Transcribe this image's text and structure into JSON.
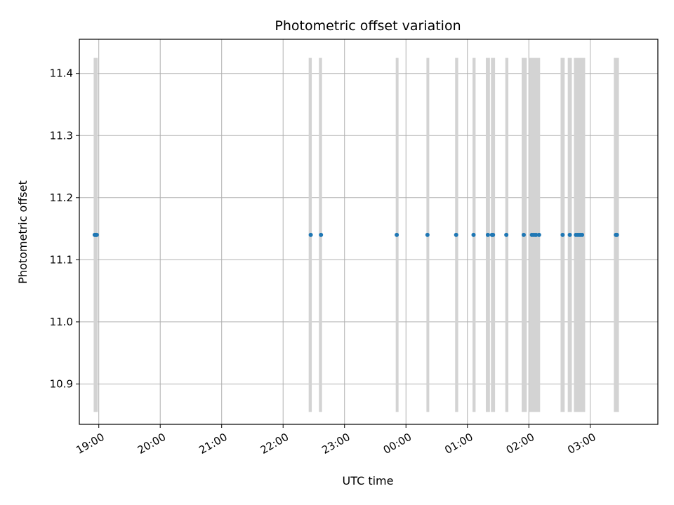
{
  "chart_data": {
    "type": "scatter",
    "title": "Photometric offset variation",
    "xlabel": "UTC time",
    "ylabel": "Photometric offset",
    "x_axis_type": "time",
    "xlim": [
      "18:41",
      "04:06"
    ],
    "ylim": [
      10.835,
      11.455
    ],
    "grid": true,
    "x_ticks": [
      "19:00",
      "20:00",
      "21:00",
      "22:00",
      "23:00",
      "00:00",
      "01:00",
      "02:00",
      "03:00"
    ],
    "y_ticks": [
      "10.9",
      "11.0",
      "11.1",
      "11.2",
      "11.3",
      "11.4"
    ],
    "band_range": [
      10.855,
      11.425
    ],
    "band_color": "#d3d3d3",
    "point_color": "#1f77b4",
    "bands": [
      {
        "start": "18:55",
        "end": "18:59"
      },
      {
        "start": "22:25",
        "end": "22:28"
      },
      {
        "start": "22:35",
        "end": "22:38"
      },
      {
        "start": "23:50",
        "end": "23:52"
      },
      {
        "start": "00:20",
        "end": "00:22"
      },
      {
        "start": "00:48",
        "end": "00:51"
      },
      {
        "start": "01:05",
        "end": "01:08"
      },
      {
        "start": "01:18",
        "end": "01:22"
      },
      {
        "start": "01:23",
        "end": "01:27"
      },
      {
        "start": "01:37",
        "end": "01:40"
      },
      {
        "start": "01:53",
        "end": "01:58"
      },
      {
        "start": "02:00",
        "end": "02:11"
      },
      {
        "start": "02:31",
        "end": "02:35"
      },
      {
        "start": "02:38",
        "end": "02:42"
      },
      {
        "start": "02:44",
        "end": "02:55"
      },
      {
        "start": "03:23",
        "end": "03:28"
      }
    ],
    "series": [
      {
        "x": [
          "18:56",
          "18:57",
          "18:58",
          "22:27",
          "22:37",
          "23:51",
          "00:21",
          "00:49",
          "01:06",
          "01:20",
          "01:24",
          "01:25",
          "01:38",
          "01:55",
          "02:03",
          "02:05",
          "02:07",
          "02:10",
          "02:33",
          "02:40",
          "02:46",
          "02:48",
          "02:50",
          "02:52",
          "03:25",
          "03:26"
        ],
        "y": [
          11.14,
          11.14,
          11.14,
          11.14,
          11.14,
          11.14,
          11.14,
          11.14,
          11.14,
          11.14,
          11.14,
          11.14,
          11.14,
          11.14,
          11.14,
          11.14,
          11.14,
          11.14,
          11.14,
          11.14,
          11.14,
          11.14,
          11.14,
          11.14,
          11.14,
          11.14
        ]
      }
    ]
  }
}
